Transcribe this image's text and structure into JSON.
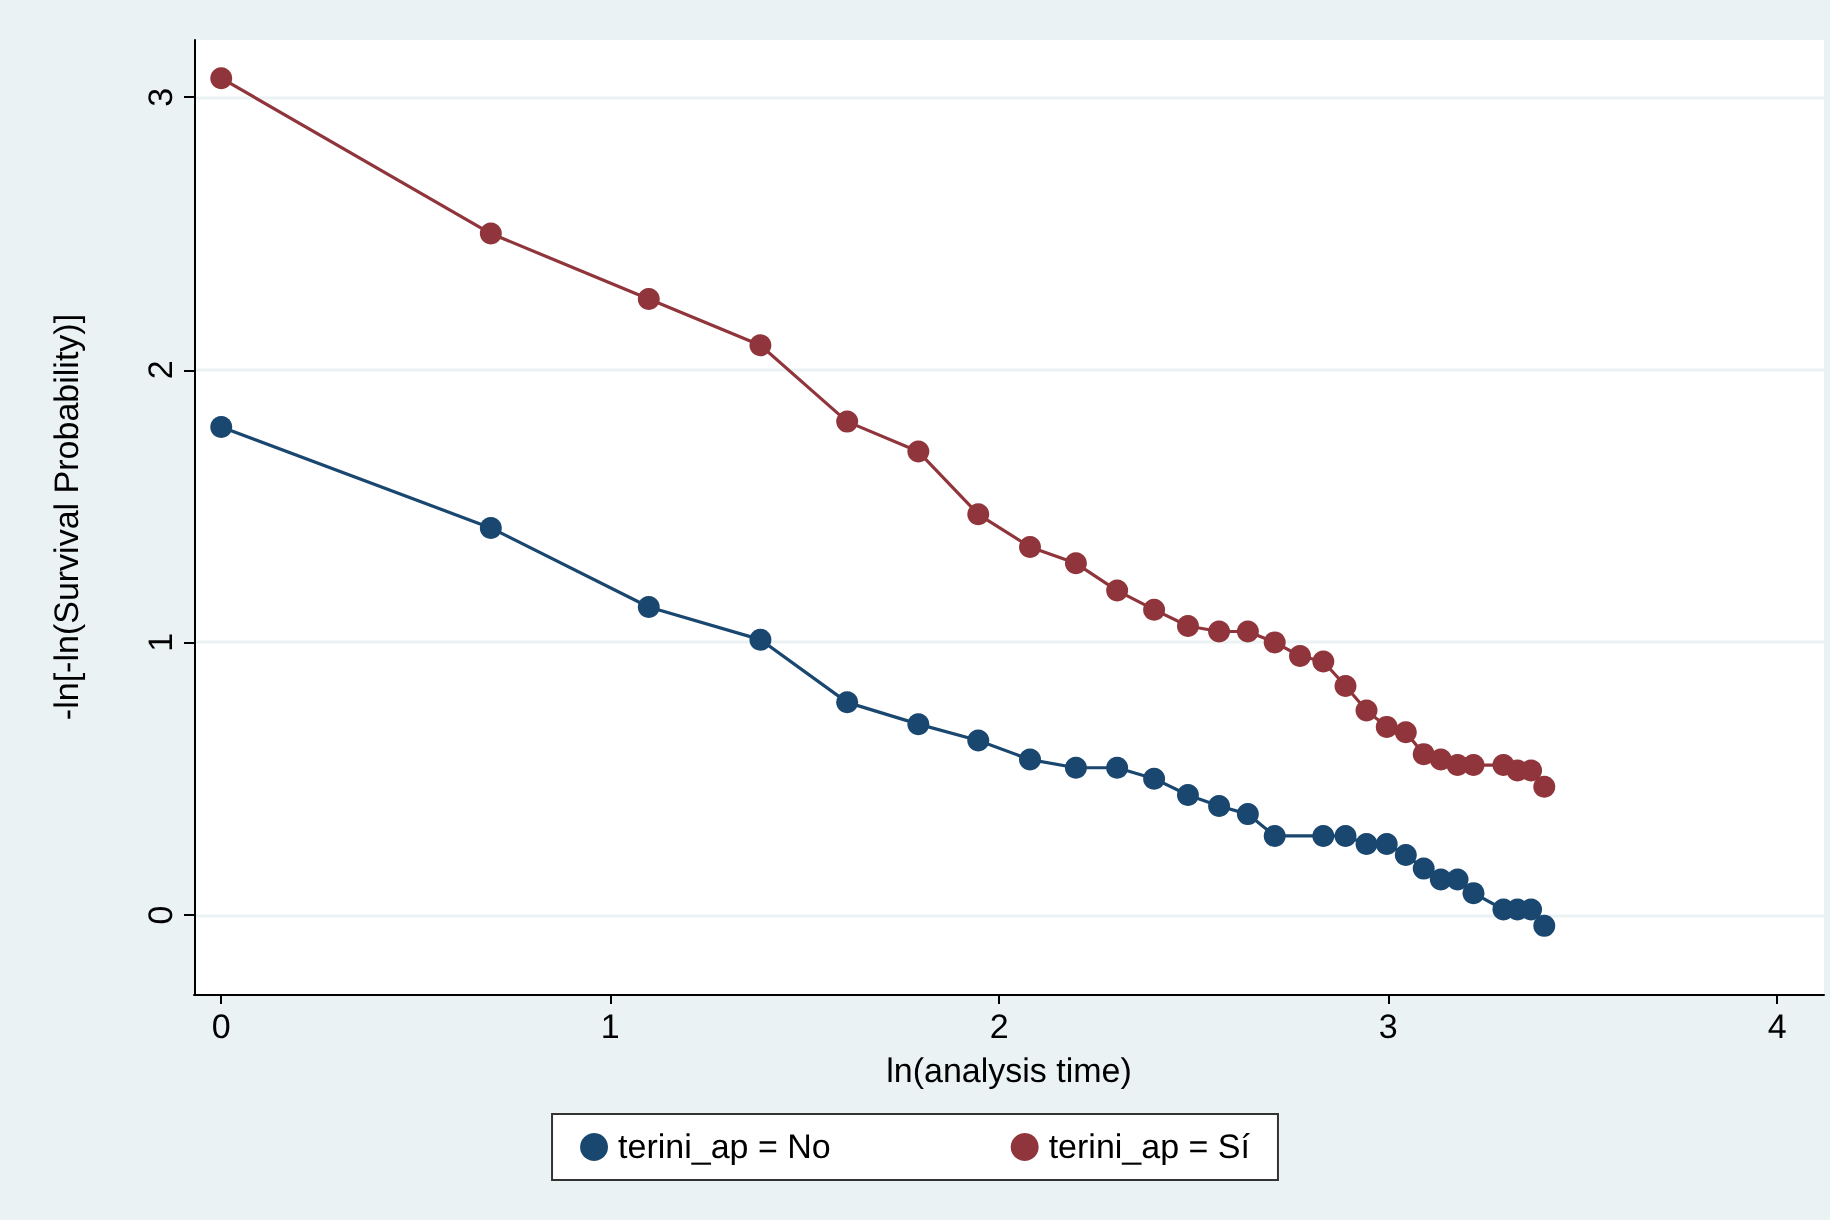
{
  "chart_data": {
    "type": "line",
    "xlabel": "ln(analysis time)",
    "ylabel": "-ln[-ln(Survival Probability)]",
    "xlim": [
      -0.07,
      4.12
    ],
    "ylim": [
      -0.29,
      3.21
    ],
    "xticks": [
      0,
      1,
      2,
      3,
      4
    ],
    "yticks": [
      0,
      1,
      2,
      3
    ],
    "grid": "y",
    "legend": "bottom",
    "marker": "circle",
    "line_style": "solid",
    "series": [
      {
        "name": "terini_ap = No",
        "color": "#1a476f",
        "x": [
          0,
          0.693,
          1.099,
          1.386,
          1.609,
          1.792,
          1.946,
          2.079,
          2.197,
          2.303,
          2.398,
          2.485,
          2.565,
          2.639,
          2.708,
          2.833,
          2.89,
          2.944,
          2.996,
          3.045,
          3.091,
          3.135,
          3.178,
          3.219,
          3.296,
          3.332,
          3.367,
          3.401
        ],
        "values": [
          1.79,
          1.42,
          1.13,
          1.01,
          0.78,
          0.7,
          0.64,
          0.57,
          0.54,
          0.54,
          0.5,
          0.44,
          0.4,
          0.37,
          0.29,
          0.29,
          0.29,
          0.26,
          0.26,
          0.22,
          0.17,
          0.13,
          0.13,
          0.08,
          0.02,
          0.02,
          0.02,
          -0.04
        ]
      },
      {
        "name": "terini_ap = Sí",
        "color": "#90353b",
        "x": [
          0,
          0.693,
          1.099,
          1.386,
          1.609,
          1.792,
          1.946,
          2.079,
          2.197,
          2.303,
          2.398,
          2.485,
          2.565,
          2.639,
          2.708,
          2.773,
          2.833,
          2.89,
          2.944,
          2.996,
          3.045,
          3.091,
          3.135,
          3.178,
          3.219,
          3.296,
          3.332,
          3.367,
          3.401
        ],
        "values": [
          3.07,
          2.5,
          2.26,
          2.09,
          1.81,
          1.7,
          1.47,
          1.35,
          1.29,
          1.19,
          1.12,
          1.06,
          1.04,
          1.04,
          1.0,
          0.95,
          0.93,
          0.84,
          0.75,
          0.69,
          0.67,
          0.59,
          0.57,
          0.55,
          0.55,
          0.55,
          0.53,
          0.53,
          0.47
        ]
      }
    ]
  }
}
